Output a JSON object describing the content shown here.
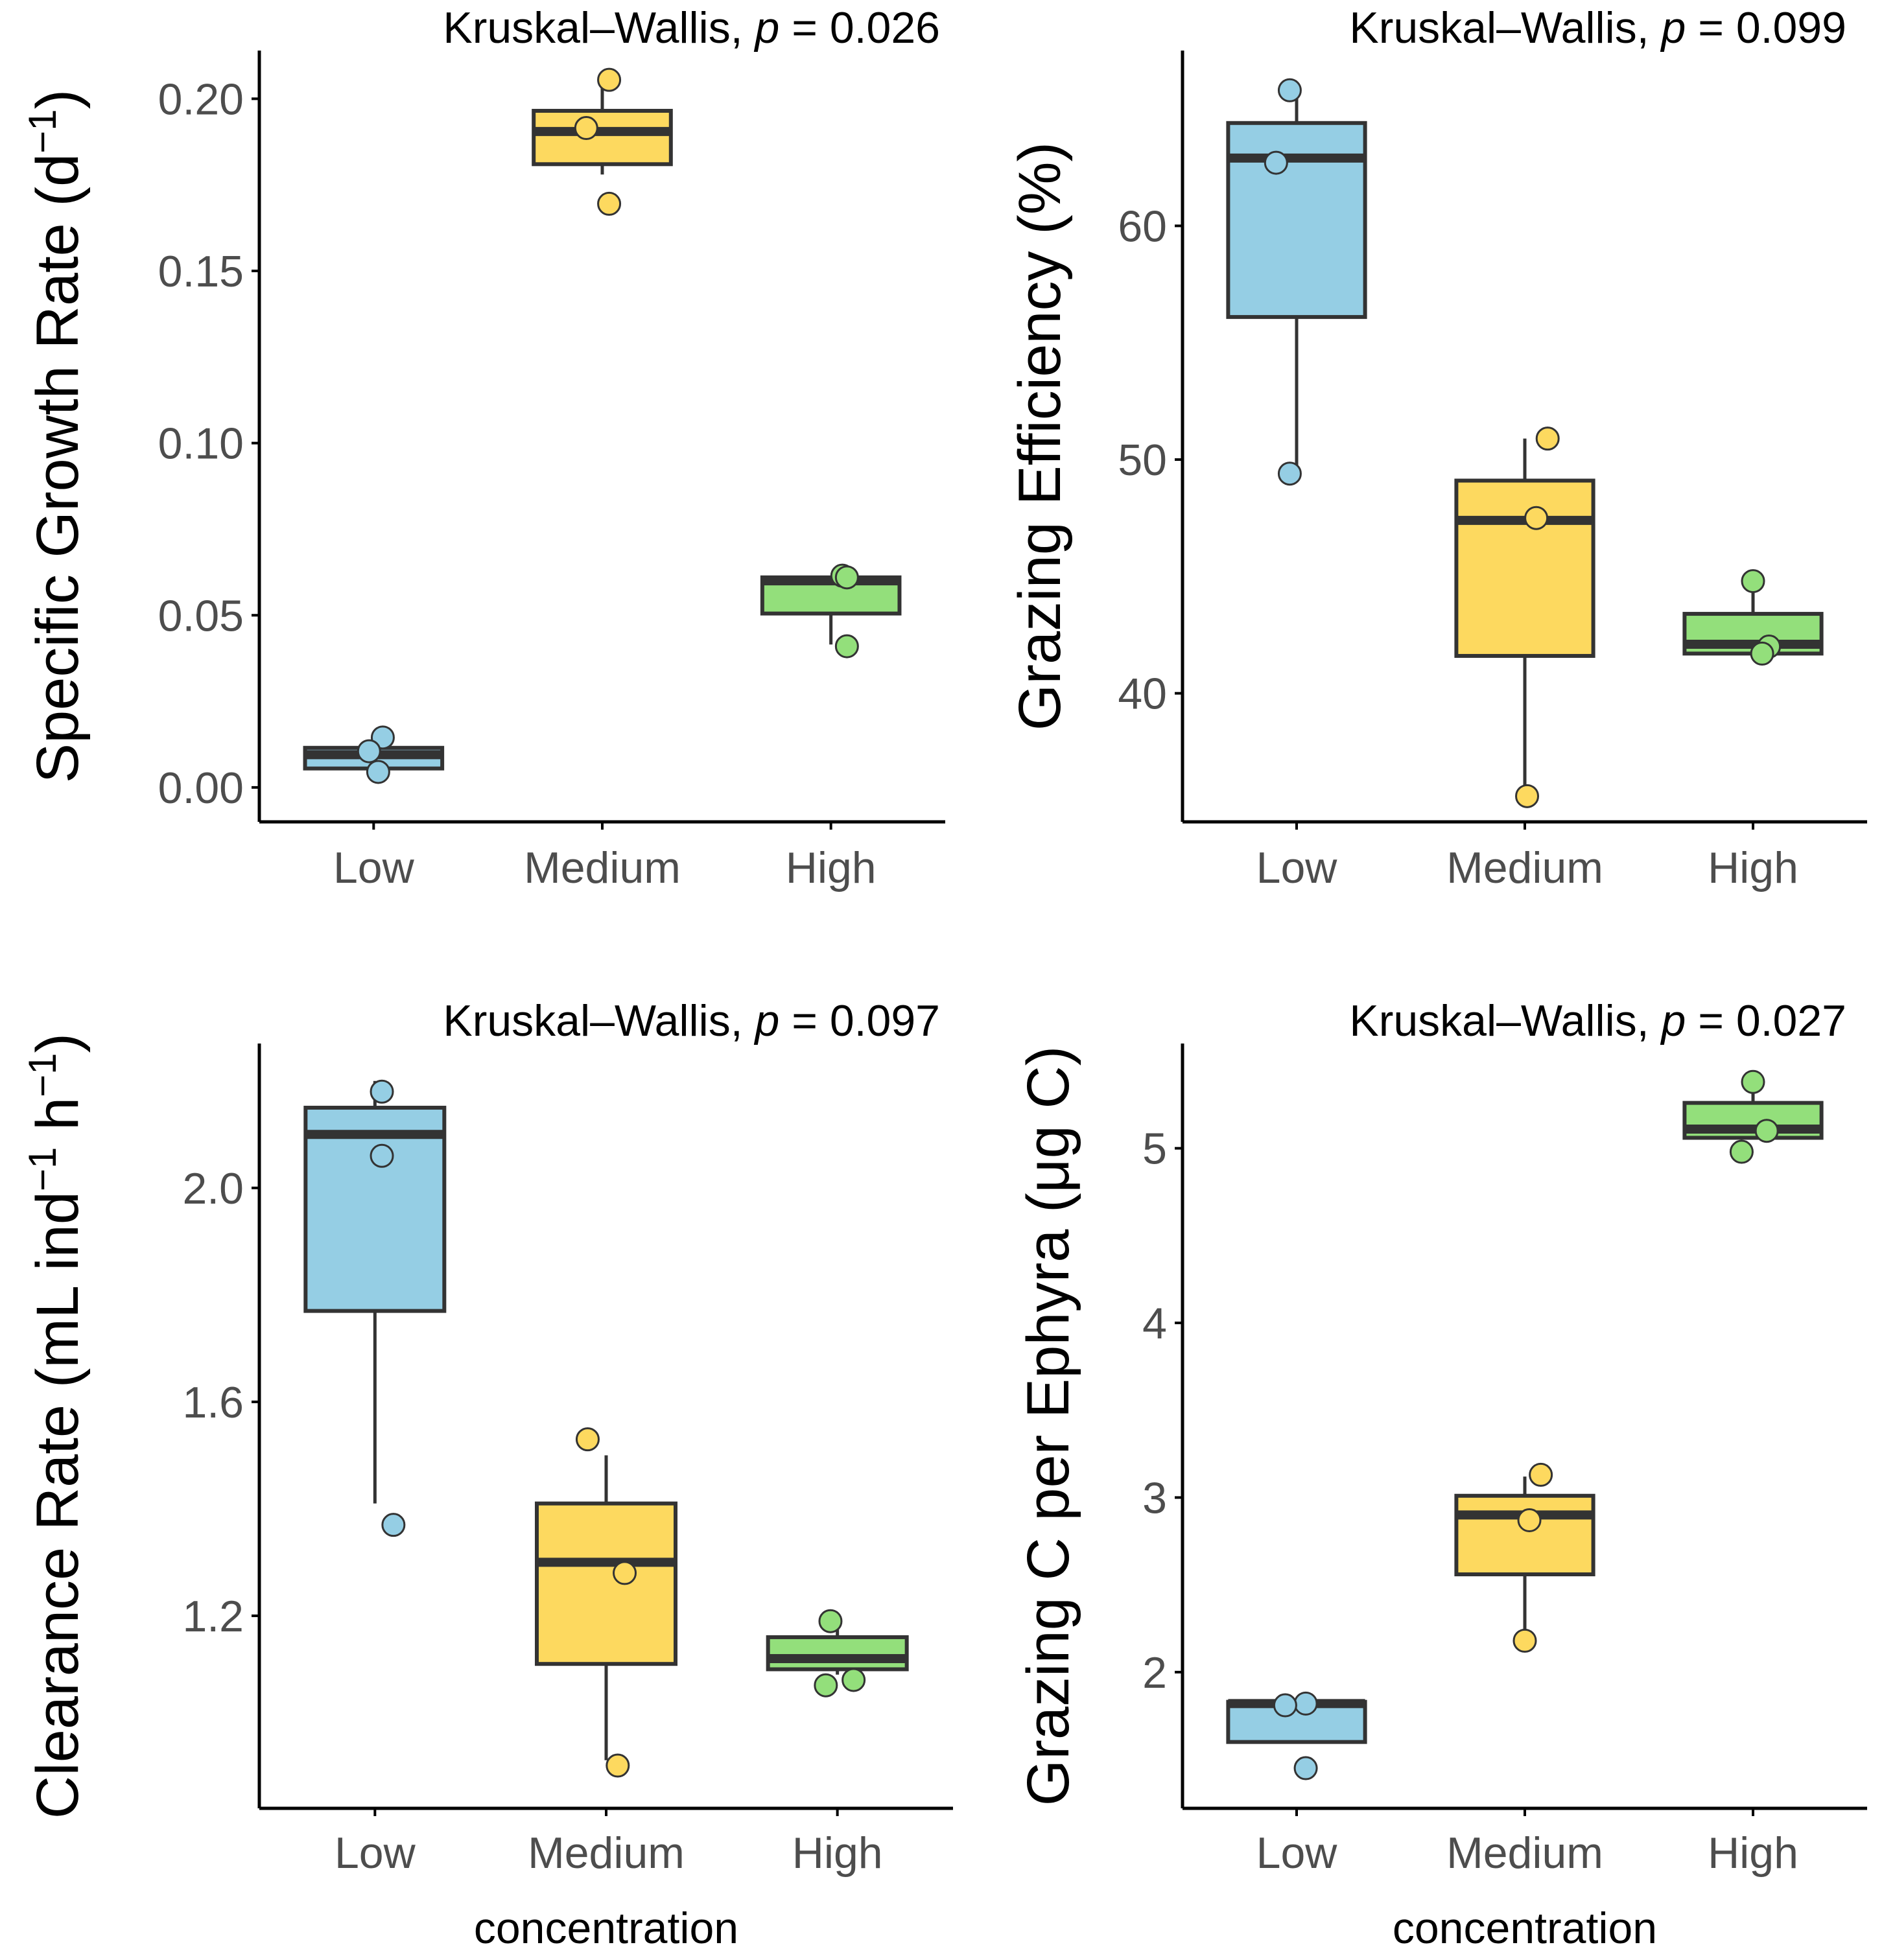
{
  "chart_data": [
    {
      "type": "box",
      "panel": "top-left",
      "title": "",
      "annotation": {
        "test": "Kruskal–Wallis,",
        "stat": "p",
        "value": "= 0.026"
      },
      "ylabel": "Specific Growth Rate (d",
      "ylabel_sup": "−1",
      "ylabel_tail": ")",
      "xlabel": "",
      "categories": [
        "Low",
        "Medium",
        "High"
      ],
      "ylim": [
        -0.01,
        0.214
      ],
      "yticks": [
        0.0,
        0.05,
        0.1,
        0.15,
        0.2
      ],
      "ytick_labels": [
        "0.00",
        "0.05",
        "0.10",
        "0.15",
        "0.20"
      ],
      "boxes": [
        {
          "category": "Low",
          "whisker_low": 0.0055,
          "q1": 0.0055,
          "median": 0.0095,
          "q3": 0.0115,
          "whisker_high": 0.0115
        },
        {
          "category": "Medium",
          "whisker_low": 0.178,
          "q1": 0.181,
          "median": 0.1905,
          "q3": 0.1965,
          "whisker_high": 0.2055
        },
        {
          "category": "High",
          "whisker_low": 0.0415,
          "q1": 0.0505,
          "median": 0.06,
          "q3": 0.061,
          "whisker_high": 0.0615
        }
      ],
      "points": [
        {
          "category": "Low",
          "values": [
            0.0145,
            0.0105,
            0.0045
          ],
          "jitter": [
            0.04,
            -0.02,
            0.02
          ]
        },
        {
          "category": "Medium",
          "values": [
            0.2055,
            0.1915,
            0.1695
          ],
          "jitter": [
            0.03,
            -0.07,
            0.03
          ]
        },
        {
          "category": "High",
          "values": [
            0.0615,
            0.061,
            0.041
          ],
          "jitter": [
            0.05,
            0.07,
            0.07
          ]
        }
      ]
    },
    {
      "type": "box",
      "panel": "top-right",
      "title": "",
      "annotation": {
        "test": "Kruskal–Wallis,",
        "stat": "p",
        "value": "= 0.099"
      },
      "ylabel": "Grazing Efficiency (%)",
      "ylabel_sup": "",
      "ylabel_tail": "",
      "xlabel": "",
      "categories": [
        "Low",
        "Medium",
        "High"
      ],
      "ylim": [
        34.5,
        67.5
      ],
      "yticks": [
        40,
        50,
        60
      ],
      "ytick_labels": [
        "40",
        "50",
        "60"
      ],
      "boxes": [
        {
          "category": "Low",
          "whisker_low": 49.4,
          "q1": 56.1,
          "median": 62.9,
          "q3": 64.4,
          "whisker_high": 65.8
        },
        {
          "category": "Medium",
          "whisker_low": 35.6,
          "q1": 41.6,
          "median": 47.4,
          "q3": 49.1,
          "whisker_high": 50.9
        },
        {
          "category": "High",
          "whisker_low": 41.6,
          "q1": 41.7,
          "median": 42.1,
          "q3": 43.4,
          "whisker_high": 44.8
        }
      ],
      "points": [
        {
          "category": "Low",
          "values": [
            65.8,
            62.7,
            49.4
          ],
          "jitter": [
            -0.03,
            -0.09,
            -0.03
          ]
        },
        {
          "category": "Medium",
          "values": [
            50.9,
            47.5,
            35.6
          ],
          "jitter": [
            0.1,
            0.05,
            0.01
          ]
        },
        {
          "category": "High",
          "values": [
            44.8,
            42.0,
            41.7
          ],
          "jitter": [
            0.0,
            0.07,
            0.04
          ]
        }
      ]
    },
    {
      "type": "box",
      "panel": "bottom-left",
      "title": "",
      "annotation": {
        "test": "Kruskal–Wallis,",
        "stat": "p",
        "value": "= 0.097"
      },
      "ylabel": "Clearance Rate (mL ind",
      "ylabel_sup": "−1",
      "ylabel_mid": " h",
      "ylabel_sup2": "−1",
      "ylabel_tail": ")",
      "xlabel": "concentration",
      "categories": [
        "Low",
        "Medium",
        "High"
      ],
      "ylim": [
        0.84,
        2.27
      ],
      "yticks": [
        1.2,
        1.6,
        2.0
      ],
      "ytick_labels": [
        "1.2",
        "1.6",
        "2.0"
      ],
      "boxes": [
        {
          "category": "Low",
          "whisker_low": 1.41,
          "q1": 1.77,
          "median": 2.1,
          "q3": 2.15,
          "whisker_high": 2.2
        },
        {
          "category": "Medium",
          "whisker_low": 0.93,
          "q1": 1.11,
          "median": 1.3,
          "q3": 1.41,
          "whisker_high": 1.5
        },
        {
          "category": "High",
          "whisker_low": 1.09,
          "q1": 1.1,
          "median": 1.12,
          "q3": 1.16,
          "whisker_high": 1.19
        }
      ],
      "points": [
        {
          "category": "Low",
          "values": [
            2.18,
            2.06,
            1.37
          ],
          "jitter": [
            0.03,
            0.03,
            0.08
          ]
        },
        {
          "category": "Medium",
          "values": [
            1.53,
            1.28,
            0.92
          ],
          "jitter": [
            -0.08,
            0.08,
            0.05
          ]
        },
        {
          "category": "High",
          "values": [
            1.19,
            1.08,
            1.07
          ],
          "jitter": [
            -0.03,
            0.07,
            -0.05
          ]
        }
      ]
    },
    {
      "type": "box",
      "panel": "bottom-right",
      "title": "",
      "annotation": {
        "test": "Kruskal–Wallis,",
        "stat": "p",
        "value": "= 0.027"
      },
      "ylabel": "Grazing C per Ephyra (μg C)",
      "ylabel_sup": "",
      "ylabel_tail": "",
      "xlabel": "concentration",
      "categories": [
        "Low",
        "Medium",
        "High"
      ],
      "ylim": [
        1.22,
        5.6
      ],
      "yticks": [
        2,
        3,
        4,
        5
      ],
      "ytick_labels": [
        "2",
        "3",
        "4",
        "5"
      ],
      "boxes": [
        {
          "category": "Low",
          "whisker_low": 1.6,
          "q1": 1.6,
          "median": 1.82,
          "q3": 1.83,
          "whisker_high": 1.83
        },
        {
          "category": "Medium",
          "whisker_low": 2.2,
          "q1": 2.56,
          "median": 2.9,
          "q3": 3.01,
          "whisker_high": 3.12
        },
        {
          "category": "High",
          "whisker_low": 5.05,
          "q1": 5.06,
          "median": 5.11,
          "q3": 5.26,
          "whisker_high": 5.38
        }
      ],
      "points": [
        {
          "category": "Low",
          "values": [
            1.82,
            1.81,
            1.45
          ],
          "jitter": [
            0.04,
            -0.05,
            0.04
          ]
        },
        {
          "category": "Medium",
          "values": [
            3.13,
            2.87,
            2.18
          ],
          "jitter": [
            0.07,
            0.02,
            0.0
          ]
        },
        {
          "category": "High",
          "values": [
            5.38,
            5.1,
            4.98
          ],
          "jitter": [
            0.0,
            0.06,
            -0.05
          ]
        }
      ]
    }
  ],
  "colors": {
    "Low": "#95cee4",
    "Medium": "#fdd95f",
    "High": "#93df7b"
  }
}
